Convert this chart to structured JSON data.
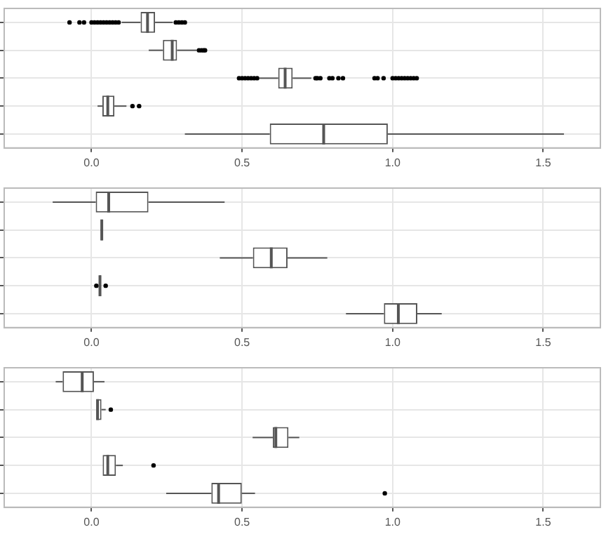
{
  "chart_data": [
    {
      "type": "box",
      "orientation": "horizontal",
      "categories": [
        null,
        null,
        null,
        null,
        null
      ],
      "boxes": [
        {
          "low": 0.1,
          "q1": 0.163,
          "median": 0.186,
          "q3": 0.211,
          "high": 0.27,
          "outliers": [
            -0.073,
            -0.04,
            -0.025,
            0,
            0.01,
            0.02,
            0.03,
            0.04,
            0.05,
            0.06,
            0.07,
            0.08,
            0.09,
            0.28,
            0.29,
            0.3,
            0.31
          ]
        },
        {
          "low": 0.19,
          "q1": 0.237,
          "median": 0.268,
          "q3": 0.284,
          "high": 0.35,
          "outliers": [
            0.357,
            0.365,
            0.372,
            0.377
          ]
        },
        {
          "low": 0.558,
          "q1": 0.62,
          "median": 0.643,
          "q3": 0.668,
          "high": 0.73,
          "outliers": [
            0.49,
            0.5,
            0.51,
            0.52,
            0.53,
            0.54,
            0.55,
            0.744,
            0.75,
            0.76,
            0.79,
            0.8,
            0.82,
            0.835,
            0.94,
            0.95,
            0.97,
            1.0,
            1.01,
            1.02,
            1.03,
            1.04,
            1.05,
            1.06,
            1.07,
            1.08
          ]
        },
        {
          "low": 0.02,
          "q1": 0.036,
          "median": 0.054,
          "q3": 0.076,
          "high": 0.116,
          "outliers": [
            0.136,
            0.158
          ]
        },
        {
          "low": 0.31,
          "q1": 0.592,
          "median": 0.771,
          "q3": 0.984,
          "high": 1.569
        }
      ],
      "xlim": [
        -0.29,
        1.69
      ],
      "xticks": [
        {
          "value": 0,
          "label": "0.0"
        },
        {
          "value": 0.5,
          "label": "0.5"
        },
        {
          "value": 1,
          "label": "1.0"
        },
        {
          "value": 1.5,
          "label": "1.5"
        }
      ],
      "grid": true,
      "tick_labels": "x"
    },
    {
      "type": "box",
      "orientation": "horizontal",
      "categories": [
        null,
        null,
        null,
        null,
        null
      ],
      "boxes": [
        {
          "low": -0.129,
          "q1": 0.014,
          "median": 0.057,
          "q3": 0.189,
          "high": 0.442
        },
        {
          "low": 0.03,
          "q1": 0.031,
          "median": 0.034,
          "q3": 0.037,
          "high": 0.038
        },
        {
          "low": 0.426,
          "q1": 0.536,
          "median": 0.597,
          "q3": 0.651,
          "high": 0.783
        },
        {
          "low": 0.026,
          "q1": 0.026,
          "median": 0.028,
          "q3": 0.032,
          "high": 0.032,
          "outliers": [
            0.016,
            0.047
          ]
        },
        {
          "low": 0.845,
          "q1": 0.971,
          "median": 1.019,
          "q3": 1.082,
          "high": 1.163
        }
      ],
      "xlim": [
        -0.29,
        1.69
      ],
      "xticks": [
        {
          "value": 0,
          "label": "0.0"
        },
        {
          "value": 0.5,
          "label": "0.5"
        },
        {
          "value": 1,
          "label": "1.0"
        },
        {
          "value": 1.5,
          "label": "1.5"
        }
      ],
      "grid": true,
      "tick_labels": "x"
    },
    {
      "type": "box",
      "orientation": "horizontal",
      "categories": [
        null,
        null,
        null,
        null,
        null
      ],
      "boxes": [
        {
          "low": -0.119,
          "q1": -0.096,
          "median": -0.031,
          "q3": 0.008,
          "high": 0.043
        },
        {
          "low": 0.016,
          "q1": 0.016,
          "median": 0.02,
          "q3": 0.033,
          "high": 0.047,
          "outliers": [
            0.064
          ]
        },
        {
          "low": 0.535,
          "q1": 0.602,
          "median": 0.612,
          "q3": 0.654,
          "high": 0.69
        },
        {
          "low": 0.037,
          "q1": 0.037,
          "median": 0.054,
          "q3": 0.081,
          "high": 0.104,
          "outliers": [
            0.206
          ]
        },
        {
          "low": 0.248,
          "q1": 0.398,
          "median": 0.422,
          "q3": 0.499,
          "high": 0.543,
          "outliers": [
            0.974
          ]
        }
      ],
      "xlim": [
        -0.29,
        1.69
      ],
      "xticks": [
        {
          "value": 0,
          "label": "0.0"
        },
        {
          "value": 0.5,
          "label": "0.5"
        },
        {
          "value": 1,
          "label": "1.0"
        },
        {
          "value": 1.5,
          "label": "1.5"
        }
      ],
      "grid": true,
      "tick_labels": "x"
    }
  ]
}
